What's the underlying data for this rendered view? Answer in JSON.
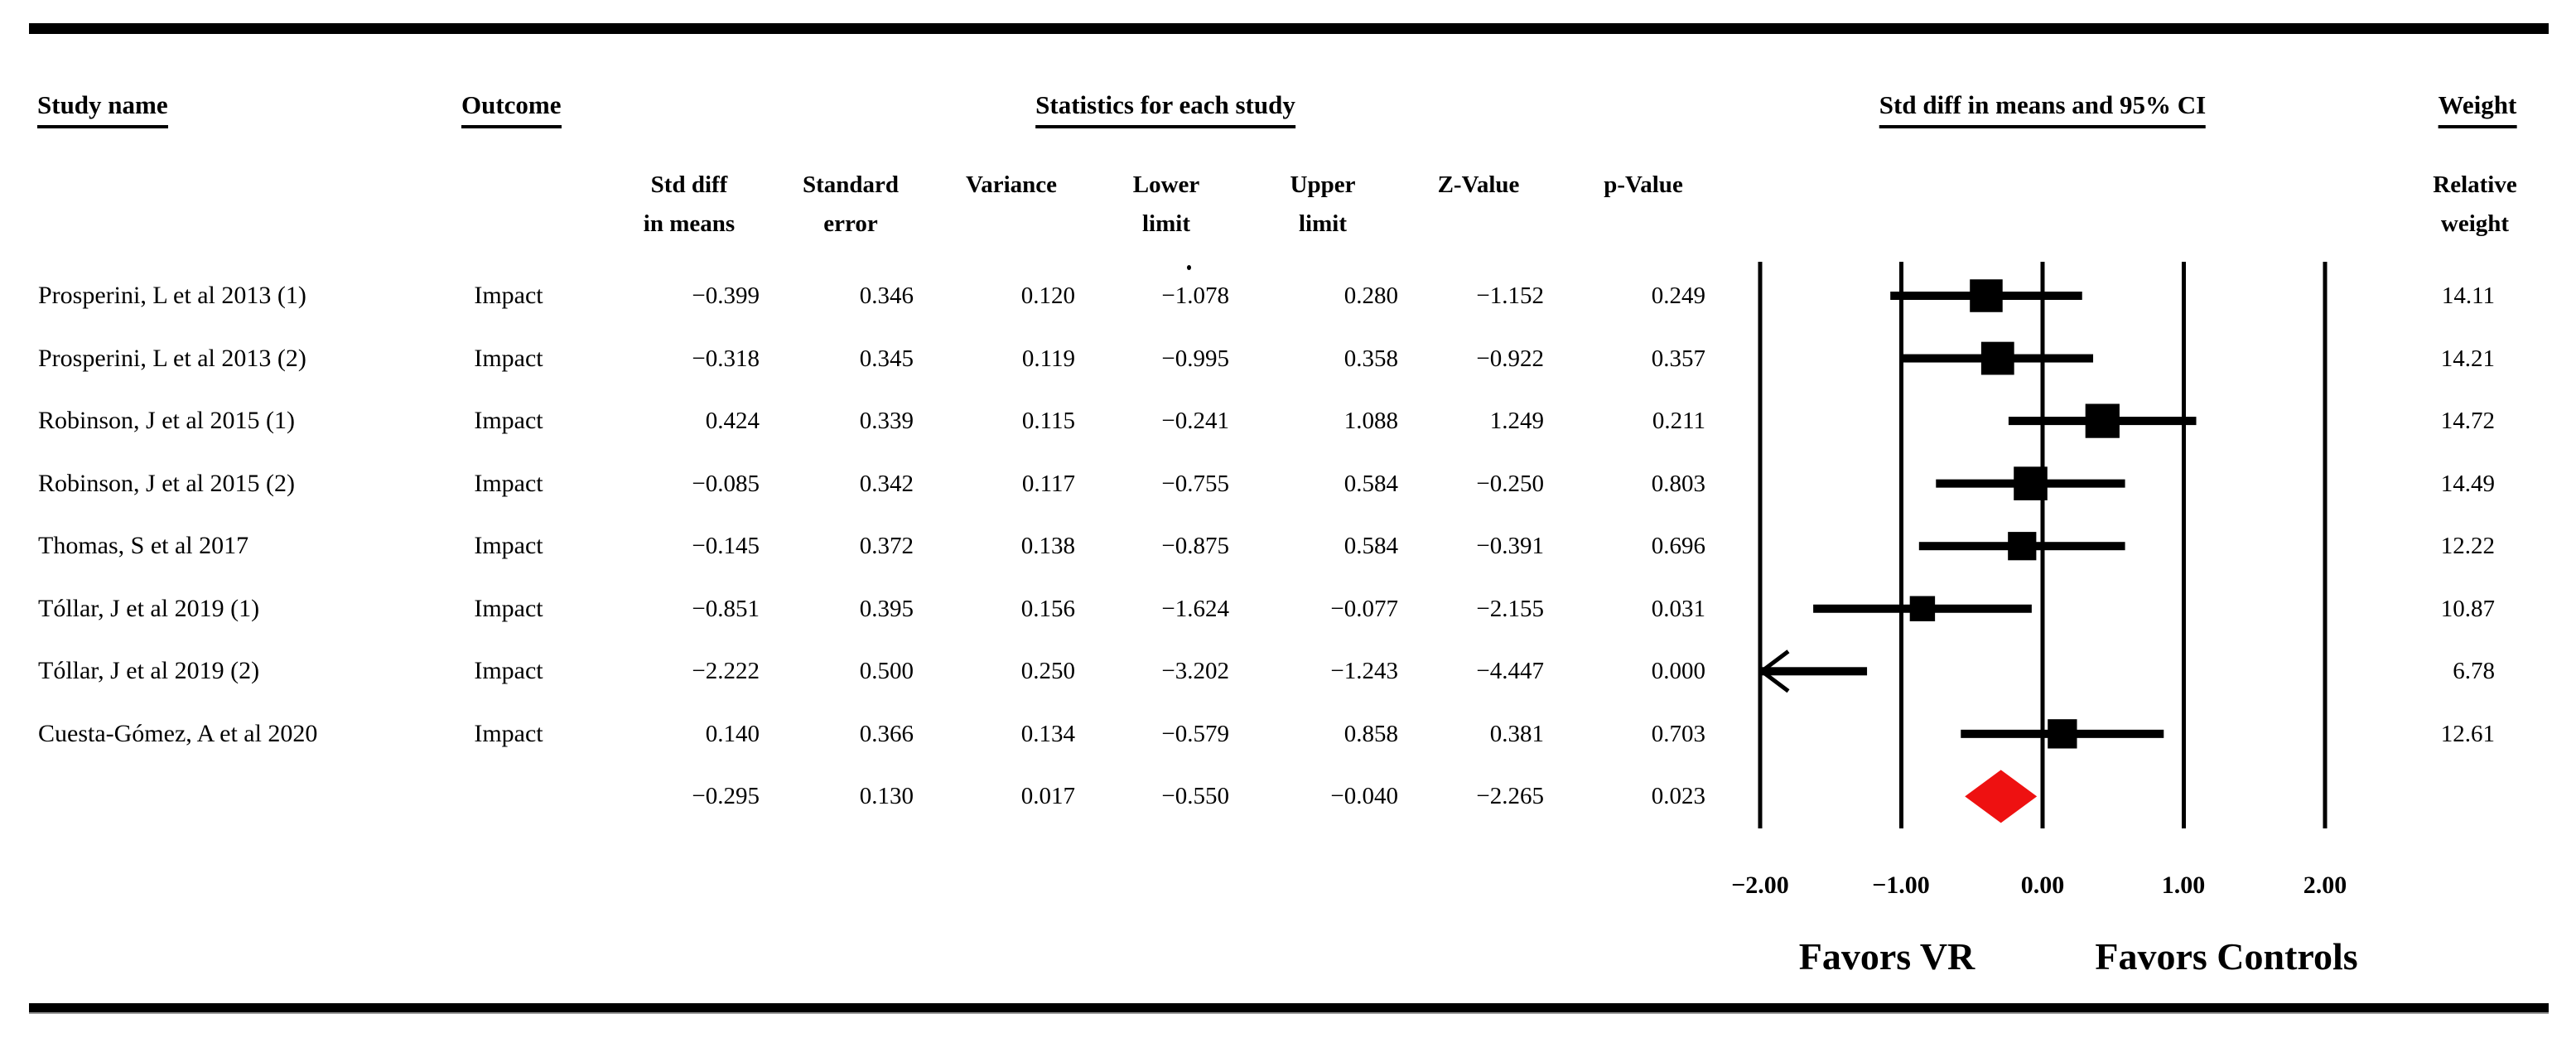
{
  "table": {
    "headers": {
      "study_name": "Study name",
      "outcome": "Outcome",
      "statistics": "Statistics for each study",
      "ci_plot": "Std diff in means and 95% CI",
      "weight": "Weight",
      "columns": [
        [
          "Std diff",
          "in means"
        ],
        [
          "Standard",
          "error"
        ],
        [
          "",
          "Variance"
        ],
        [
          "Lower",
          "limit"
        ],
        [
          "Upper",
          "limit"
        ],
        [
          "",
          "Z-Value"
        ],
        [
          "",
          "p-Value"
        ]
      ],
      "weight_col": [
        "Relative",
        "weight"
      ]
    },
    "rows": [
      {
        "study": "Prosperini, L et al 2013 (1)",
        "outcome": "Impact",
        "values": [
          "−0.399",
          "0.346",
          "0.120",
          "−1.078",
          "0.280",
          "−1.152",
          "0.249"
        ],
        "weight": "14.11"
      },
      {
        "study": "Prosperini, L et al 2013 (2)",
        "outcome": "Impact",
        "values": [
          "−0.318",
          "0.345",
          "0.119",
          "−0.995",
          "0.358",
          "−0.922",
          "0.357"
        ],
        "weight": "14.21"
      },
      {
        "study": "Robinson, J et al 2015 (1)",
        "outcome": "Impact",
        "values": [
          "0.424",
          "0.339",
          "0.115",
          "−0.241",
          "1.088",
          "1.249",
          "0.211"
        ],
        "weight": "14.72"
      },
      {
        "study": "Robinson, J et al 2015 (2)",
        "outcome": "Impact",
        "values": [
          "−0.085",
          "0.342",
          "0.117",
          "−0.755",
          "0.584",
          "−0.250",
          "0.803"
        ],
        "weight": "14.49"
      },
      {
        "study": "Thomas, S et al 2017",
        "outcome": "Impact",
        "values": [
          "−0.145",
          "0.372",
          "0.138",
          "−0.875",
          "0.584",
          "−0.391",
          "0.696"
        ],
        "weight": "12.22"
      },
      {
        "study": "Tóllar, J et al 2019 (1)",
        "outcome": "Impact",
        "values": [
          "−0.851",
          "0.395",
          "0.156",
          "−1.624",
          "−0.077",
          "−2.155",
          "0.031"
        ],
        "weight": "10.87"
      },
      {
        "study": "Tóllar, J et al 2019 (2)",
        "outcome": "Impact",
        "values": [
          "−2.222",
          "0.500",
          "0.250",
          "−3.202",
          "−1.243",
          "−4.447",
          "0.000"
        ],
        "weight": "6.78"
      },
      {
        "study": "Cuesta-Gómez, A et al 2020",
        "outcome": "Impact",
        "values": [
          "0.140",
          "0.366",
          "0.134",
          "−0.579",
          "0.858",
          "0.381",
          "0.703"
        ],
        "weight": "12.61"
      }
    ],
    "summary_row": {
      "values": [
        "−0.295",
        "0.130",
        "0.017",
        "−0.550",
        "−0.040",
        "−2.265",
        "0.023"
      ]
    }
  },
  "chart_data": {
    "type": "forest",
    "title": "Std diff in means and 95% CI",
    "x_axis": {
      "xlim": [
        -2,
        2
      ],
      "ticks": [
        -2,
        -1,
        0,
        1,
        2
      ],
      "tick_labels": [
        "−2.00",
        "−1.00",
        "0.00",
        "1.00",
        "2.00"
      ]
    },
    "favors_left": "Favors VR",
    "favors_right": "Favors Controls",
    "studies": [
      {
        "name": "Prosperini, L et al 2013 (1)",
        "estimate": -0.399,
        "lower": -1.078,
        "upper": 0.28,
        "weight": 14.11
      },
      {
        "name": "Prosperini, L et al 2013 (2)",
        "estimate": -0.318,
        "lower": -0.995,
        "upper": 0.358,
        "weight": 14.21
      },
      {
        "name": "Robinson, J et al 2015 (1)",
        "estimate": 0.424,
        "lower": -0.241,
        "upper": 1.088,
        "weight": 14.72
      },
      {
        "name": "Robinson, J et al 2015 (2)",
        "estimate": -0.085,
        "lower": -0.755,
        "upper": 0.584,
        "weight": 14.49
      },
      {
        "name": "Thomas, S et al 2017",
        "estimate": -0.145,
        "lower": -0.875,
        "upper": 0.584,
        "weight": 12.22
      },
      {
        "name": "Tóllar, J et al 2019 (1)",
        "estimate": -0.851,
        "lower": -1.624,
        "upper": -0.077,
        "weight": 10.87
      },
      {
        "name": "Tóllar, J et al 2019 (2)",
        "estimate": -2.222,
        "lower": -3.202,
        "upper": -1.243,
        "weight": 6.78
      },
      {
        "name": "Cuesta-Gómez, A et al 2020",
        "estimate": 0.14,
        "lower": -0.579,
        "upper": 0.858,
        "weight": 12.61
      }
    ],
    "summary": {
      "estimate": -0.295,
      "lower": -0.55,
      "upper": -0.04
    },
    "marker_color": "#000000",
    "diamond_color": "#ee1111"
  }
}
